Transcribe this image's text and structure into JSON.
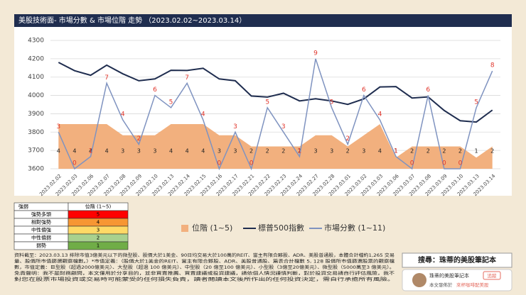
{
  "header": {
    "title": "美股技術面- 市場分數 & 市場位階 走勢 （2023.02.02~2023.03.14）"
  },
  "chart_data": {
    "type": "combo",
    "categories": [
      "2023.02.02",
      "2023.02.03",
      "2023.02.06",
      "2023.02.07",
      "2023.02.08",
      "2023.02.09",
      "2023.02.10",
      "2023.02.13",
      "2023.02.14",
      "2023.02.15",
      "2023.02.16",
      "2023.02.17",
      "2023.02.21",
      "2023.02.22",
      "2023.02.23",
      "2023.02.24",
      "2023.02.27",
      "2023.02.28",
      "2023.03.01",
      "2023.03.02",
      "2023.03.03",
      "2023.03.06",
      "2023.03.07",
      "2023.03.08",
      "2023.03.09",
      "2023.03.10",
      "2023.03.13",
      "2023.03.14"
    ],
    "ylim": [
      3600,
      4300
    ],
    "yticks": [
      3600,
      3700,
      3800,
      3900,
      4000,
      4100,
      4200,
      4300
    ],
    "grid": true,
    "y2lim": [
      0,
      10.5
    ],
    "y3lim": [
      0,
      11.5
    ],
    "series": [
      {
        "name": "位階 (1~5)",
        "kind": "area",
        "axis": "y3",
        "color": "#f2b07e",
        "label_color": "#222222",
        "values": [
          4,
          4,
          4,
          4,
          3,
          3,
          3,
          4,
          4,
          4,
          3,
          3,
          2,
          2,
          2,
          2,
          3,
          3,
          2,
          3,
          4,
          1,
          2,
          2,
          2,
          2,
          1,
          2
        ]
      },
      {
        "name": "標普500指數",
        "kind": "line",
        "color": "#1f2d4f",
        "values": [
          4180,
          4135,
          4110,
          4165,
          4118,
          4080,
          4090,
          4137,
          4136,
          4148,
          4090,
          4080,
          3997,
          3991,
          4012,
          3970,
          3982,
          3970,
          3951,
          3981,
          4046,
          4048,
          3986,
          3992,
          3918,
          3862,
          3855,
          3920
        ]
      },
      {
        "name": "市場分數 (1~11)",
        "kind": "line",
        "axis": "y2",
        "color": "#7f93c0",
        "label_color": "#e0352b",
        "values": [
          3,
          0,
          1,
          7,
          4,
          2,
          6,
          5,
          7,
          4,
          0,
          3,
          0,
          5,
          3,
          1,
          9,
          5,
          2,
          6,
          4,
          1,
          0,
          6,
          0,
          0,
          5,
          8
        ]
      }
    ]
  },
  "level_table": {
    "header": [
      "強弱",
      "位階 (1~5)"
    ],
    "rows": [
      [
        "強勢多頭",
        "5"
      ],
      [
        "相對強勢",
        "4"
      ],
      [
        "中性偏強",
        "3"
      ],
      [
        "中性偏弱",
        "2"
      ],
      [
        "弱勢",
        "1"
      ]
    ]
  },
  "footer": {
    "lines": [
      "資料截至：2023.03.13 排除市值3億美元以下的微型股、股價大於1美金、90日均交易大於100萬的REIT、當主有限合夥股、ADR、美股普通股，本體合計檔約1,265 交易",
      "量、股價所市值篩選觀察檔數。）*市值定義：（股價大於1美金的REIT、當主有限合夥股、ADR、美股普通股、篇表合計檔數 5, 128 股價所市值篩選股票的觀察檔",
      "數，市值定義：巨型股（超過2000億美元）、大型股（超過 100 億美元）、中型股（20 億至100 億美元）、小型股（3億至20億美元）、微型股（5000萬至3 億美元）。",
      "免責聲明：我不是財務顧問，本文僅用於分享目的，並非買賣推薦、買賣建議或投資建議，請依個人情況謹慎判斷，對於投資交易請自行評估風險，我不",
      "對您在股票市場投資或交易時可能蒙受的任何損失負責，讀者閱讀本文後所作出的任何投資決定，需自行承擔所有風險。"
    ]
  },
  "sidebar": {
    "search": "搜尋：珠蒂的美股筆記本",
    "card_name": "珠蒂的美股筆記本",
    "follow": "追蹤",
    "published_prefix": "本文發佈於",
    "published_link": "來杯咖啡配美股"
  }
}
